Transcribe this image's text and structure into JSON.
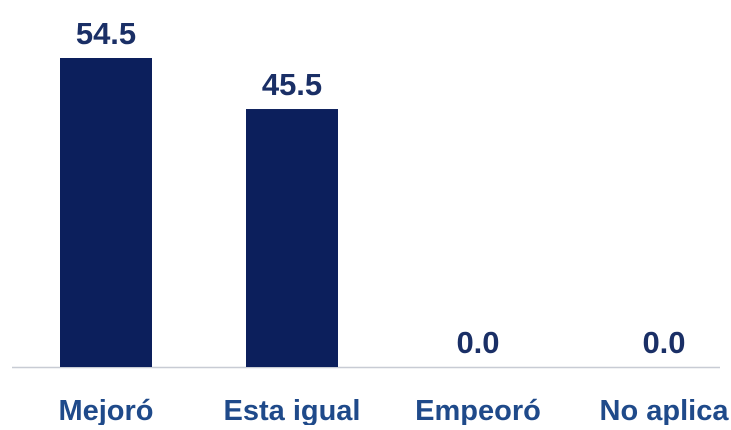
{
  "chart_data": {
    "type": "bar",
    "categories": [
      "Mejoró",
      "Esta igual",
      "Empeoró",
      "No aplica"
    ],
    "values": [
      54.5,
      45.5,
      0.0,
      0.0
    ],
    "value_labels": [
      "54.5",
      "45.5",
      "0.0",
      "0.0"
    ],
    "title": "",
    "xlabel": "",
    "ylabel": "",
    "ylim": [
      0,
      54.5
    ],
    "grid": false,
    "legend": "none"
  },
  "colors": {
    "bar": "#0c1f5c",
    "value_label": "#1a2f66",
    "category_label": "#1f4a8a",
    "baseline": "#c8ccd4"
  }
}
